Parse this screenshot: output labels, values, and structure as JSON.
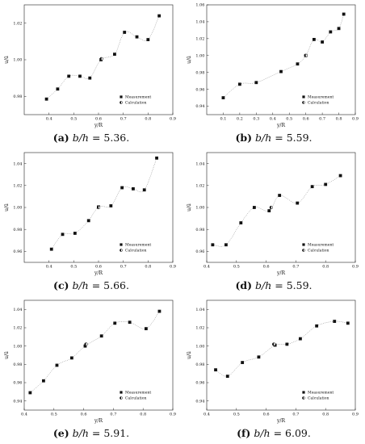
{
  "chart_data": [
    {
      "type": "scatter",
      "caption": {
        "label": "(a)",
        "var": "b/h",
        "rest": " = 5.36."
      },
      "xlabel": "y/R",
      "ylabel": "u/ū",
      "xlim": [
        0.3,
        0.9
      ],
      "ylim": [
        0.97,
        1.03
      ],
      "xticks": [
        0.4,
        0.5,
        0.6,
        0.7,
        0.8,
        0.9
      ],
      "xticklabels": [
        "0.4",
        "0.5",
        "0.6",
        "0.7",
        "0.8",
        "0.9"
      ],
      "yticks": [
        0.98,
        1.0,
        1.02
      ],
      "yticklabels": [
        "0.98",
        "1.00",
        "1.02"
      ],
      "series": [
        {
          "name": "Measurement",
          "x": [
            0.39,
            0.435,
            0.48,
            0.525,
            0.565,
            0.61,
            0.665,
            0.705,
            0.755,
            0.8,
            0.845
          ],
          "y": [
            0.9785,
            0.984,
            0.991,
            0.991,
            0.99,
            1.0,
            1.003,
            1.015,
            1.0125,
            1.011,
            1.024
          ]
        },
        {
          "name": "Calculation",
          "x": [
            0.612
          ],
          "y": [
            1.0005
          ]
        }
      ],
      "legend": "bottom-right"
    },
    {
      "type": "scatter",
      "caption": {
        "label": "(b)",
        "var": "b/h",
        "rest": " = 5.59."
      },
      "xlabel": "y/R",
      "ylabel": "u/ū",
      "xlim": [
        0.0,
        0.9
      ],
      "ylim": [
        0.93,
        1.06
      ],
      "xticks": [
        0.1,
        0.2,
        0.3,
        0.4,
        0.5,
        0.6,
        0.7,
        0.8,
        0.9
      ],
      "xticklabels": [
        "0.1",
        "0.2",
        "0.3",
        "0.4",
        "0.5",
        "0.6",
        "0.7",
        "0.8",
        "0.9"
      ],
      "yticks": [
        0.94,
        0.96,
        0.98,
        1.0,
        1.02,
        1.04,
        1.06
      ],
      "yticklabels": [
        "0.94",
        "0.96",
        "0.98",
        "1.00",
        "1.02",
        "1.04",
        "1.06"
      ],
      "series": [
        {
          "name": "Measurement",
          "x": [
            0.1,
            0.2,
            0.3,
            0.45,
            0.55,
            0.6,
            0.65,
            0.7,
            0.75,
            0.8,
            0.83
          ],
          "y": [
            0.95,
            0.966,
            0.968,
            0.981,
            0.99,
            1.0,
            1.019,
            1.016,
            1.028,
            1.032,
            1.049
          ]
        },
        {
          "name": "Calculation",
          "x": [
            0.6
          ],
          "y": [
            1.0
          ]
        }
      ],
      "legend": "bottom-right"
    },
    {
      "type": "scatter",
      "caption": {
        "label": "(c)",
        "var": "b/h",
        "rest": " = 5.66."
      },
      "xlabel": "y/R",
      "ylabel": "u/ū",
      "xlim": [
        0.3,
        0.9
      ],
      "ylim": [
        0.95,
        1.05
      ],
      "xticks": [
        0.4,
        0.5,
        0.6,
        0.7,
        0.8,
        0.9
      ],
      "xticklabels": [
        "0.4",
        "0.5",
        "0.6",
        "0.7",
        "0.8",
        "0.9"
      ],
      "yticks": [
        0.96,
        0.98,
        1.0,
        1.02,
        1.04
      ],
      "yticklabels": [
        "0.96",
        "0.98",
        "1.00",
        "1.02",
        "1.04"
      ],
      "series": [
        {
          "name": "Measurement",
          "x": [
            0.41,
            0.455,
            0.505,
            0.56,
            0.6,
            0.65,
            0.695,
            0.74,
            0.785,
            0.835
          ],
          "y": [
            0.962,
            0.9755,
            0.9765,
            0.988,
            1.0005,
            1.0015,
            1.018,
            1.017,
            1.016,
            1.045
          ]
        },
        {
          "name": "Calculation",
          "x": [
            0.6
          ],
          "y": [
            1.0
          ]
        }
      ],
      "legend": "bottom-right"
    },
    {
      "type": "scatter",
      "caption": {
        "label": "(d)",
        "var": "b/h",
        "rest": " = 5.59."
      },
      "xlabel": "y/R",
      "ylabel": "u/ū",
      "xlim": [
        0.4,
        0.9
      ],
      "ylim": [
        0.95,
        1.05
      ],
      "xticks": [
        0.4,
        0.5,
        0.6,
        0.7,
        0.8,
        0.9
      ],
      "xticklabels": [
        "0.4",
        "0.5",
        "0.6",
        "0.7",
        "0.8",
        "0.9"
      ],
      "yticks": [
        0.96,
        0.98,
        1.0,
        1.02,
        1.04
      ],
      "yticklabels": [
        "0.96",
        "0.98",
        "1.00",
        "1.02",
        "1.04"
      ],
      "series": [
        {
          "name": "Measurement",
          "x": [
            0.42,
            0.465,
            0.515,
            0.56,
            0.61,
            0.645,
            0.705,
            0.755,
            0.8,
            0.85
          ],
          "y": [
            0.966,
            0.966,
            0.986,
            1.0,
            0.997,
            1.011,
            1.004,
            1.019,
            1.021,
            1.029
          ]
        },
        {
          "name": "Calculation",
          "x": [
            0.617
          ],
          "y": [
            1.0
          ]
        }
      ],
      "legend": "bottom-right"
    },
    {
      "type": "scatter",
      "caption": {
        "label": "(e)",
        "var": "b/h",
        "rest": " = 5.91."
      },
      "xlabel": "y/R",
      "ylabel": "u/ū",
      "xlim": [
        0.4,
        0.9
      ],
      "ylim": [
        0.93,
        1.05
      ],
      "xticks": [
        0.4,
        0.5,
        0.6,
        0.7,
        0.8,
        0.9
      ],
      "xticklabels": [
        "0.4",
        "0.5",
        "0.6",
        "0.7",
        "0.8",
        "0.9"
      ],
      "yticks": [
        0.94,
        0.96,
        0.98,
        1.0,
        1.02,
        1.04
      ],
      "yticklabels": [
        "0.94",
        "0.96",
        "0.98",
        "1.00",
        "1.02",
        "1.04"
      ],
      "series": [
        {
          "name": "Measurement",
          "x": [
            0.42,
            0.465,
            0.51,
            0.56,
            0.605,
            0.66,
            0.705,
            0.755,
            0.81,
            0.855
          ],
          "y": [
            0.949,
            0.962,
            0.979,
            0.987,
            1.0,
            1.011,
            1.025,
            1.026,
            1.019,
            1.038
          ]
        },
        {
          "name": "Calculation",
          "x": [
            0.608
          ],
          "y": [
            1.002
          ]
        }
      ],
      "legend": "bottom-right"
    },
    {
      "type": "scatter",
      "caption": {
        "label": "(f)",
        "var": "b/h",
        "rest": " = 6.09."
      },
      "xlabel": "y/R",
      "ylabel": "u/ū",
      "xlim": [
        0.4,
        0.9
      ],
      "ylim": [
        0.93,
        1.05
      ],
      "xticks": [
        0.4,
        0.5,
        0.6,
        0.7,
        0.8,
        0.9
      ],
      "xticklabels": [
        "0.4",
        "0.5",
        "0.6",
        "0.7",
        "0.8",
        "0.9"
      ],
      "yticks": [
        0.94,
        0.96,
        0.98,
        1.0,
        1.02,
        1.04
      ],
      "yticklabels": [
        "0.94",
        "0.96",
        "0.98",
        "1.00",
        "1.02",
        "1.04"
      ],
      "series": [
        {
          "name": "Measurement",
          "x": [
            0.43,
            0.47,
            0.52,
            0.575,
            0.63,
            0.67,
            0.715,
            0.77,
            0.83,
            0.875
          ],
          "y": [
            0.974,
            0.967,
            0.982,
            0.988,
            1.001,
            1.002,
            1.008,
            1.022,
            1.027,
            1.025
          ]
        },
        {
          "name": "Calculation",
          "x": [
            0.626
          ],
          "y": [
            1.002
          ]
        }
      ],
      "legend": "bottom-right"
    }
  ]
}
